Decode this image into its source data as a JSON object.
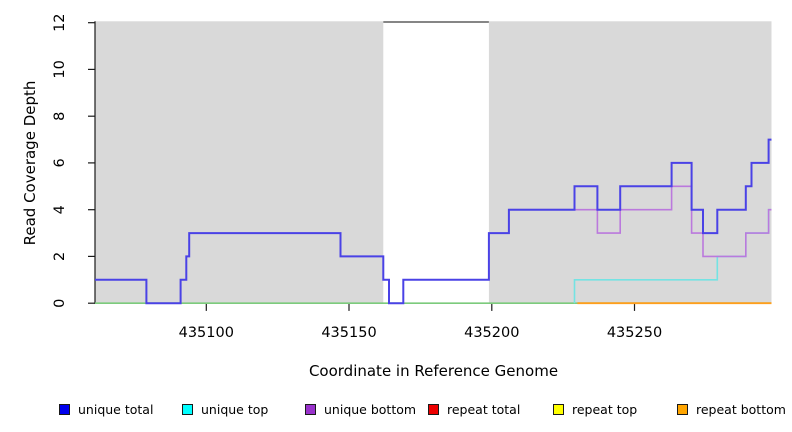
{
  "chart_data": {
    "type": "line",
    "step": true,
    "title": "",
    "xlabel": "Coordinate in Reference Genome",
    "ylabel": "Read Coverage Depth",
    "xlim": [
      435061,
      435298
    ],
    "ylim": [
      0,
      12
    ],
    "x_ticks": [
      435100,
      435150,
      435200,
      435250
    ],
    "y_ticks": [
      0,
      2,
      4,
      6,
      8,
      10,
      12
    ],
    "grid": false,
    "legend_position": "bottom",
    "background_regions": [
      {
        "name": "shaded-region-left",
        "x0": 435061,
        "x1": 435162,
        "fill": "#d9d9d9"
      },
      {
        "name": "shaded-region-right",
        "x0": 435199,
        "x1": 435298,
        "fill": "#d9d9d9"
      }
    ],
    "gap_top_line": {
      "x0": 435162,
      "x1": 435199,
      "y": 12,
      "color": "#868686",
      "width": 2
    },
    "series": [
      {
        "name": "repeat total",
        "line_color": "#dd0000",
        "line_width": 1.4,
        "points": [
          [
            435061,
            0
          ],
          [
            435298,
            0
          ]
        ]
      },
      {
        "name": "repeat top",
        "line_color": "#7ccb7c",
        "line_width": 1.6,
        "points": [
          [
            435061,
            0
          ],
          [
            435298,
            0
          ]
        ]
      },
      {
        "name": "repeat bottom",
        "line_color": "#ff9e1b",
        "line_width": 1.8,
        "points": [
          [
            435230,
            0
          ],
          [
            435298,
            0
          ]
        ]
      },
      {
        "name": "unique top",
        "line_color": "#74e3e3",
        "line_width": 1.6,
        "points": [
          [
            435229,
            0
          ],
          [
            435229,
            1
          ],
          [
            435279,
            2
          ],
          [
            435289,
            3
          ],
          [
            435297,
            4
          ],
          [
            435298,
            4
          ]
        ]
      },
      {
        "name": "unique bottom",
        "line_color": "#bb79dd",
        "line_width": 1.6,
        "points": [
          [
            435206,
            4
          ],
          [
            435237,
            3
          ],
          [
            435245,
            4
          ],
          [
            435263,
            5
          ],
          [
            435270,
            3
          ],
          [
            435274,
            2
          ],
          [
            435289,
            3
          ],
          [
            435297,
            4
          ],
          [
            435298,
            4
          ]
        ]
      },
      {
        "name": "unique total",
        "line_color": "#4a42e6",
        "line_width": 2,
        "points": [
          [
            435061,
            1
          ],
          [
            435079,
            0
          ],
          [
            435091,
            1
          ],
          [
            435093,
            2
          ],
          [
            435094,
            3
          ],
          [
            435147,
            2
          ],
          [
            435162,
            1
          ],
          [
            435164,
            0
          ],
          [
            435169,
            1
          ],
          [
            435199,
            3
          ],
          [
            435206,
            4
          ],
          [
            435229,
            5
          ],
          [
            435237,
            4
          ],
          [
            435245,
            5
          ],
          [
            435263,
            6
          ],
          [
            435270,
            4
          ],
          [
            435274,
            3
          ],
          [
            435279,
            4
          ],
          [
            435289,
            5
          ],
          [
            435291,
            6
          ],
          [
            435297,
            7
          ],
          [
            435298,
            7
          ]
        ]
      }
    ],
    "legend": [
      {
        "label": "unique total",
        "color": "#0000ee"
      },
      {
        "label": "unique top",
        "color": "#00ffff"
      },
      {
        "label": "unique bottom",
        "color": "#9932cc"
      },
      {
        "label": "repeat total",
        "color": "#ee0000"
      },
      {
        "label": "repeat top",
        "color": "#ffff00"
      },
      {
        "label": "repeat bottom",
        "color": "#ffa500"
      }
    ]
  }
}
